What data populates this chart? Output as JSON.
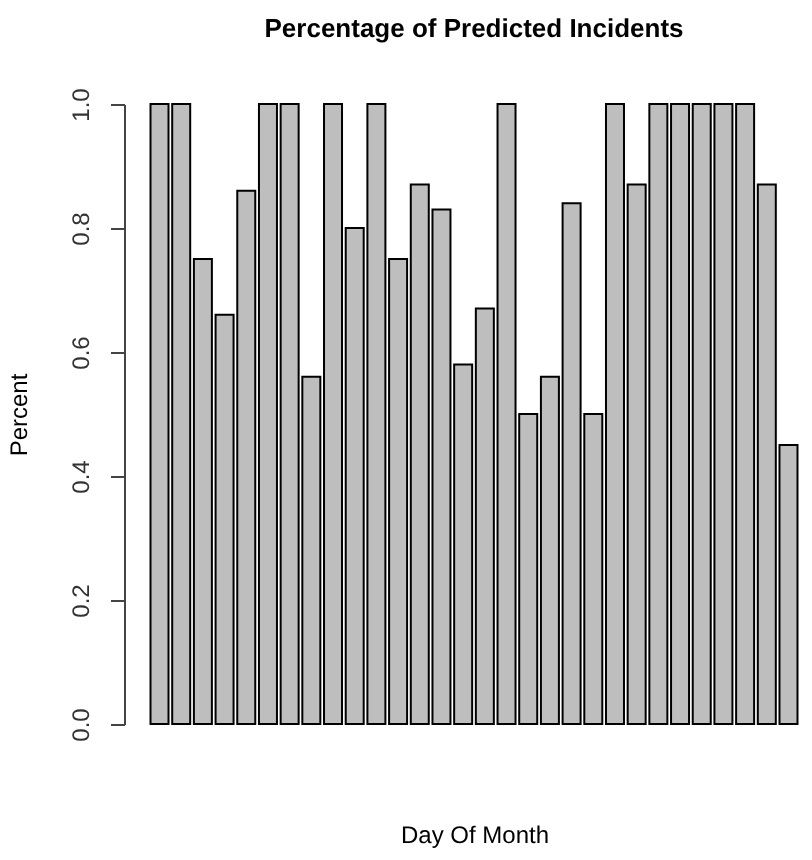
{
  "chart_data": {
    "type": "bar",
    "title": "Percentage of Predicted Incidents",
    "xlabel": "Day Of Month",
    "ylabel": "Percent",
    "categories": [
      null,
      null,
      null,
      null,
      null,
      null,
      null,
      null,
      null,
      null,
      null,
      null,
      null,
      null,
      null,
      null,
      null,
      null,
      null,
      null,
      null,
      null,
      null,
      null,
      null,
      null,
      null,
      null,
      null,
      null
    ],
    "values": [
      1,
      1,
      0.75,
      0.66,
      0.86,
      1,
      1,
      0.56,
      1,
      0.8,
      1,
      0.75,
      0.87,
      0.83,
      0.58,
      0.67,
      1,
      0.5,
      0.56,
      0.84,
      0.5,
      1,
      0.87,
      1,
      1,
      1,
      1,
      1,
      0.87,
      0.45
    ],
    "color": "#bebebe",
    "ylim": [
      0,
      1
    ],
    "yticks": [
      {
        "value": 0,
        "label": "0.0"
      },
      0.2,
      0.4,
      0.6,
      0.8,
      {
        "value": 1,
        "label": "1.0"
      }
    ],
    "grid": false,
    "tick_labels": "y"
  }
}
